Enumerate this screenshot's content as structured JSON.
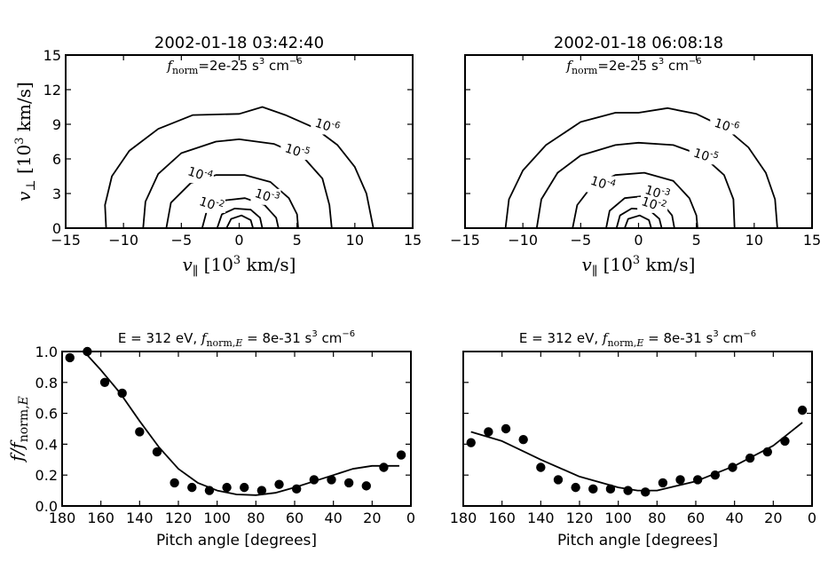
{
  "chart_data": [
    {
      "type": "contour",
      "title": "2002-01-18 03:42:40",
      "annotation": {
        "prefix": "f",
        "sub": "norm",
        "text": "=2e-25 s",
        "exp1": "3",
        "mid": " cm",
        "exp2": "−6"
      },
      "xlabel": {
        "main": "v",
        "sub": "∥",
        "rest": "  [10",
        "exp": "3",
        "tail": "  km/s]"
      },
      "ylabel": {
        "main": "v",
        "sub": "⊥",
        "rest": "  [10",
        "exp": "3",
        "tail": "  km/s]"
      },
      "xlim": [
        -15,
        15
      ],
      "ylim": [
        0,
        15
      ],
      "xticks": [
        "−15",
        "−10",
        "−5",
        "0",
        "5",
        "10",
        "15"
      ],
      "yticks": [
        "0",
        "3",
        "6",
        "9",
        "12",
        "15"
      ],
      "contours": [
        {
          "base": "10",
          "exp": "-6",
          "points": [
            [
              -11.5,
              0
            ],
            [
              -11.6,
              2
            ],
            [
              -11,
              4.5
            ],
            [
              -9.5,
              6.7
            ],
            [
              -7,
              8.6
            ],
            [
              -4,
              9.8
            ],
            [
              0,
              9.9
            ],
            [
              2,
              10.5
            ],
            [
              4,
              9.8
            ],
            [
              6.5,
              8.7
            ],
            [
              8.5,
              7.2
            ],
            [
              10,
              5.3
            ],
            [
              11,
              3
            ],
            [
              11.6,
              0
            ]
          ],
          "label_xy": [
            7.5,
            8.5
          ]
        },
        {
          "base": "10",
          "exp": "-5",
          "points": [
            [
              -8.3,
              0
            ],
            [
              -8.1,
              2.3
            ],
            [
              -7,
              4.7
            ],
            [
              -5,
              6.5
            ],
            [
              -2,
              7.5
            ],
            [
              0,
              7.7
            ],
            [
              3,
              7.3
            ],
            [
              5.5,
              6.2
            ],
            [
              7.2,
              4.3
            ],
            [
              7.8,
              2
            ],
            [
              8,
              0
            ]
          ],
          "label_xy": [
            4.9,
            6.3
          ]
        },
        {
          "base": "10",
          "exp": "-4",
          "points": [
            [
              -6.3,
              0
            ],
            [
              -5.9,
              2.2
            ],
            [
              -4.2,
              3.9
            ],
            [
              -2,
              4.6
            ],
            [
              0.5,
              4.6
            ],
            [
              2.7,
              4
            ],
            [
              4.3,
              2.6
            ],
            [
              5,
              1.2
            ],
            [
              5.1,
              0
            ]
          ],
          "label_xy": [
            -3.5,
            4.3
          ]
        },
        {
          "base": "10",
          "exp": "-3",
          "points": [
            [
              -3.2,
              0
            ],
            [
              -2.8,
              1.5
            ],
            [
              -1.3,
              2.4
            ],
            [
              0.5,
              2.6
            ],
            [
              2.2,
              2
            ],
            [
              3.2,
              0.9
            ],
            [
              3.4,
              0
            ]
          ],
          "label_xy": [
            2.3,
            2.4
          ]
        },
        {
          "base": "10",
          "exp": "-2",
          "points": [
            [
              -1.9,
              0
            ],
            [
              -1.5,
              1.2
            ],
            [
              -0.4,
              1.7
            ],
            [
              1,
              1.6
            ],
            [
              1.8,
              0.9
            ],
            [
              2,
              0
            ]
          ],
          "label_xy": [
            -2.5,
            1.7
          ]
        },
        {
          "base": "",
          "exp": "",
          "points": [
            [
              -1.1,
              0
            ],
            [
              -0.7,
              0.8
            ],
            [
              0.2,
              1.1
            ],
            [
              1,
              0.7
            ],
            [
              1.2,
              0
            ]
          ],
          "label_xy": [
            0,
            0
          ]
        }
      ]
    },
    {
      "type": "contour",
      "title": "2002-01-18 06:08:18",
      "annotation": {
        "prefix": "f",
        "sub": "norm",
        "text": "=2e-25 s",
        "exp1": "3",
        "mid": " cm",
        "exp2": "−6"
      },
      "xlabel": {
        "main": "v",
        "sub": "∥",
        "rest": "  [10",
        "exp": "3",
        "tail": "  km/s]"
      },
      "xlim": [
        -15,
        15
      ],
      "ylim": [
        0,
        15
      ],
      "xticks": [
        "−15",
        "−10",
        "−5",
        "0",
        "5",
        "10",
        "15"
      ],
      "contours": [
        {
          "base": "10",
          "exp": "-6",
          "points": [
            [
              -11.5,
              0
            ],
            [
              -11.2,
              2.5
            ],
            [
              -10,
              5
            ],
            [
              -8,
              7.2
            ],
            [
              -5,
              9.2
            ],
            [
              -2,
              10
            ],
            [
              0,
              10
            ],
            [
              2.5,
              10.4
            ],
            [
              5,
              9.9
            ],
            [
              7.5,
              8.7
            ],
            [
              9.5,
              7
            ],
            [
              11,
              4.8
            ],
            [
              11.8,
              2.5
            ],
            [
              12,
              0
            ]
          ],
          "label_xy": [
            7.5,
            8.5
          ]
        },
        {
          "base": "10",
          "exp": "-5",
          "points": [
            [
              -8.8,
              0
            ],
            [
              -8.4,
              2.5
            ],
            [
              -7,
              4.8
            ],
            [
              -5,
              6.3
            ],
            [
              -2,
              7.2
            ],
            [
              0,
              7.4
            ],
            [
              3,
              7.2
            ],
            [
              5.5,
              6.3
            ],
            [
              7.4,
              4.6
            ],
            [
              8.2,
              2.5
            ],
            [
              8.3,
              0
            ]
          ],
          "label_xy": [
            5.7,
            5.9
          ]
        },
        {
          "base": "10",
          "exp": "-4",
          "points": [
            [
              -5.7,
              0
            ],
            [
              -5.3,
              2
            ],
            [
              -4,
              3.7
            ],
            [
              -2,
              4.6
            ],
            [
              0.5,
              4.8
            ],
            [
              3,
              4.1
            ],
            [
              4.4,
              2.6
            ],
            [
              5,
              1.1
            ],
            [
              5.1,
              0
            ]
          ],
          "label_xy": [
            -3.2,
            3.5
          ]
        },
        {
          "base": "10",
          "exp": "-3",
          "points": [
            [
              -2.8,
              0
            ],
            [
              -2.5,
              1.5
            ],
            [
              -1.2,
              2.6
            ],
            [
              0.6,
              2.8
            ],
            [
              2,
              2.2
            ],
            [
              2.9,
              1.1
            ],
            [
              3.1,
              0
            ]
          ],
          "label_xy": [
            1.5,
            2.7
          ]
        },
        {
          "base": "10",
          "exp": "-2",
          "points": [
            [
              -1.9,
              0
            ],
            [
              -1.6,
              1.1
            ],
            [
              -0.6,
              1.7
            ],
            [
              0.9,
              1.6
            ],
            [
              1.8,
              0.8
            ],
            [
              2,
              0
            ]
          ],
          "label_xy": [
            1.2,
            1.7
          ]
        },
        {
          "base": "",
          "exp": "",
          "points": [
            [
              -1.2,
              0
            ],
            [
              -0.9,
              0.8
            ],
            [
              0.1,
              1.1
            ],
            [
              0.9,
              0.7
            ],
            [
              1.1,
              0
            ]
          ],
          "label_xy": [
            0,
            0
          ]
        }
      ]
    },
    {
      "type": "scatter",
      "title": {
        "pre": "E = 312 eV, ",
        "f": "f",
        "sub": "norm,",
        "subE": "E",
        "text": " = 8e-31 s",
        "exp1": "3",
        "mid": " cm",
        "exp2": "−6"
      },
      "xlabel": "Pitch angle [degrees]",
      "ylabel": {
        "main": "f/f",
        "sub": "norm,",
        "subE": "E"
      },
      "xlim": [
        180,
        0
      ],
      "ylim": [
        0,
        1
      ],
      "xticks": [
        "180",
        "160",
        "140",
        "120",
        "100",
        "80",
        "60",
        "40",
        "20",
        "0"
      ],
      "yticks": [
        "0.0",
        "0.2",
        "0.4",
        "0.6",
        "0.8",
        "1.0"
      ],
      "series": [
        {
          "kind": "points",
          "x": [
            176,
            167,
            158,
            149,
            140,
            131,
            122,
            113,
            104,
            95,
            86,
            77,
            68,
            59,
            50,
            41,
            32,
            23,
            14,
            5
          ],
          "y": [
            0.96,
            1.0,
            0.8,
            0.73,
            0.48,
            0.35,
            0.15,
            0.12,
            0.1,
            0.12,
            0.12,
            0.1,
            0.14,
            0.11,
            0.17,
            0.17,
            0.15,
            0.13,
            0.25,
            0.33
          ]
        },
        {
          "kind": "line",
          "x": [
            168,
            160,
            150,
            140,
            130,
            120,
            110,
            100,
            90,
            80,
            70,
            60,
            50,
            40,
            30,
            20,
            10,
            6
          ],
          "y": [
            0.99,
            0.88,
            0.73,
            0.55,
            0.38,
            0.24,
            0.15,
            0.1,
            0.075,
            0.07,
            0.085,
            0.12,
            0.16,
            0.2,
            0.24,
            0.26,
            0.26,
            0.26
          ]
        }
      ]
    },
    {
      "type": "scatter",
      "title": {
        "pre": "E = 312 eV, ",
        "f": "f",
        "sub": "norm,",
        "subE": "E",
        "text": " = 8e-31 s",
        "exp1": "3",
        "mid": " cm",
        "exp2": "−6"
      },
      "xlabel": "Pitch angle [degrees]",
      "xlim": [
        180,
        0
      ],
      "ylim": [
        0,
        1
      ],
      "xticks": [
        "180",
        "160",
        "140",
        "120",
        "100",
        "80",
        "60",
        "40",
        "20",
        "0"
      ],
      "series": [
        {
          "kind": "points",
          "x": [
            176,
            167,
            158,
            149,
            140,
            131,
            122,
            113,
            104,
            95,
            86,
            77,
            68,
            59,
            50,
            41,
            32,
            23,
            14,
            5
          ],
          "y": [
            0.41,
            0.48,
            0.5,
            0.43,
            0.25,
            0.17,
            0.12,
            0.11,
            0.11,
            0.1,
            0.09,
            0.15,
            0.17,
            0.17,
            0.2,
            0.25,
            0.31,
            0.35,
            0.42,
            0.62
          ]
        },
        {
          "kind": "line",
          "x": [
            176,
            160,
            140,
            120,
            100,
            90,
            80,
            60,
            40,
            20,
            5
          ],
          "y": [
            0.48,
            0.42,
            0.3,
            0.19,
            0.12,
            0.1,
            0.1,
            0.16,
            0.26,
            0.39,
            0.54
          ]
        }
      ]
    }
  ]
}
